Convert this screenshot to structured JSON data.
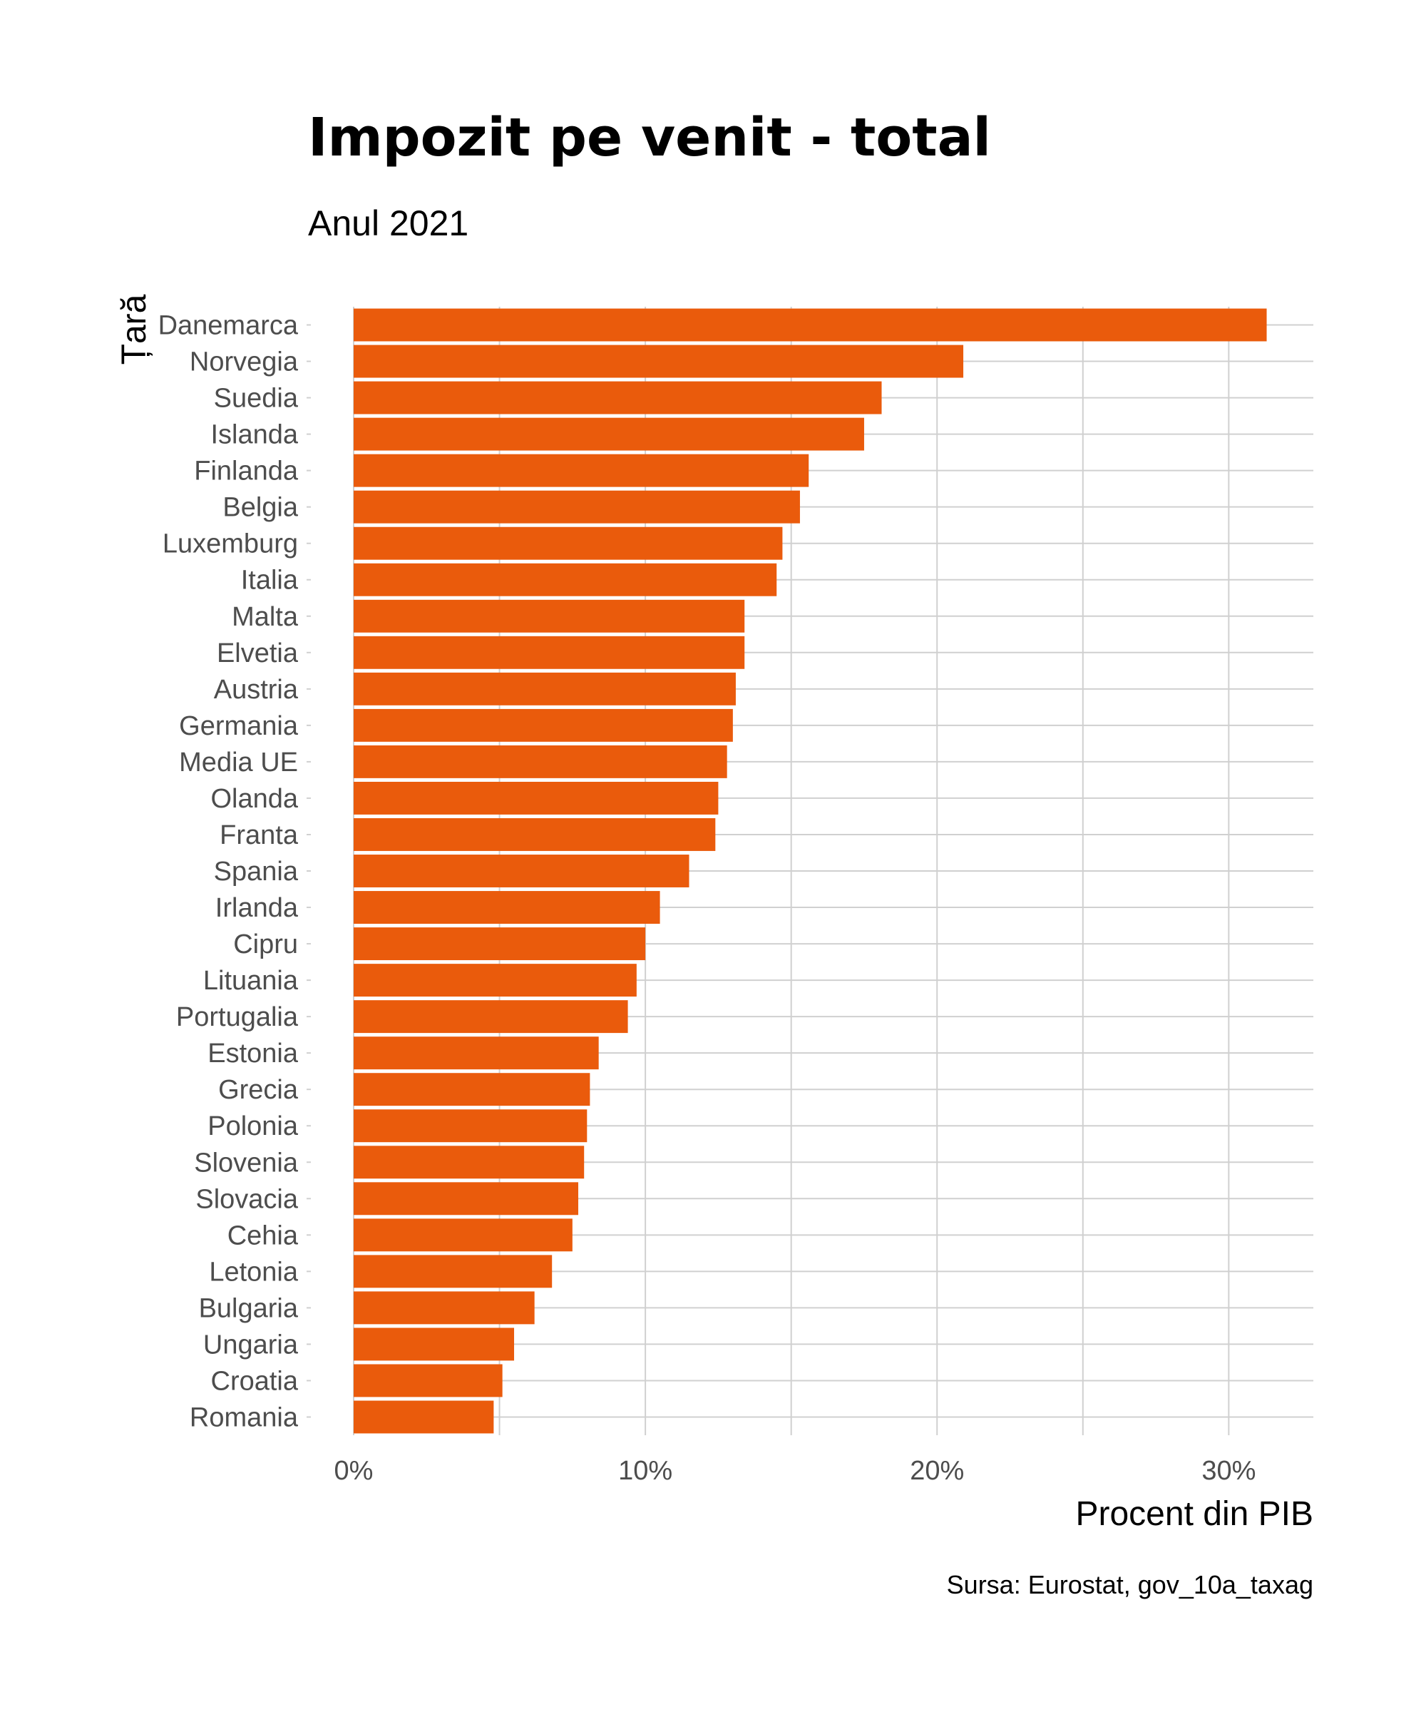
{
  "chart_data": {
    "type": "bar",
    "orientation": "horizontal",
    "title": "Impozit pe venit - total",
    "subtitle": "Anul 2021",
    "xlabel": "Procent din PIB",
    "ylabel": "Țară",
    "caption": "Sursa: Eurostat, gov_10a_taxag",
    "xlim": [
      0,
      32.9
    ],
    "x_ticks": [
      0,
      10,
      20,
      30
    ],
    "x_tick_labels": [
      "0%",
      "10%",
      "20%",
      "30%"
    ],
    "grid": true,
    "bar_color": "#EA5B0C",
    "categories": [
      "Danemarca",
      "Norvegia",
      "Suedia",
      "Islanda",
      "Finlanda",
      "Belgia",
      "Luxemburg",
      "Italia",
      "Malta",
      "Elvetia",
      "Austria",
      "Germania",
      "Media UE",
      "Olanda",
      "Franta",
      "Spania",
      "Irlanda",
      "Cipru",
      "Lituania",
      "Portugalia",
      "Estonia",
      "Grecia",
      "Polonia",
      "Slovenia",
      "Slovacia",
      "Cehia",
      "Letonia",
      "Bulgaria",
      "Ungaria",
      "Croatia",
      "Romania"
    ],
    "values": [
      31.3,
      20.9,
      18.1,
      17.5,
      15.6,
      15.3,
      14.7,
      14.5,
      13.4,
      13.4,
      13.1,
      13.0,
      12.8,
      12.5,
      12.4,
      11.5,
      10.5,
      10.0,
      9.7,
      9.4,
      8.4,
      8.1,
      8.0,
      7.9,
      7.7,
      7.5,
      6.8,
      6.2,
      5.5,
      5.1,
      4.8
    ]
  }
}
